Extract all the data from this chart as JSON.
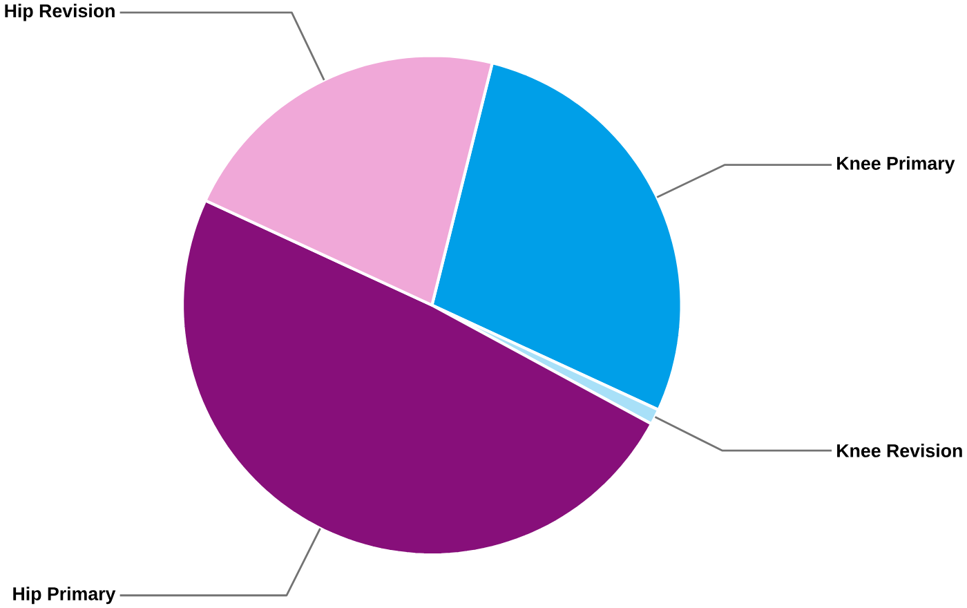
{
  "chart_data": {
    "type": "pie",
    "categories": [
      "Knee Primary",
      "Knee Revision",
      "Hip Primary",
      "Hip Revision"
    ],
    "values": [
      28,
      1,
      49,
      22
    ],
    "colors": [
      "#009fe8",
      "#a8e0f8",
      "#870f7a",
      "#f0a8d8"
    ]
  }
}
